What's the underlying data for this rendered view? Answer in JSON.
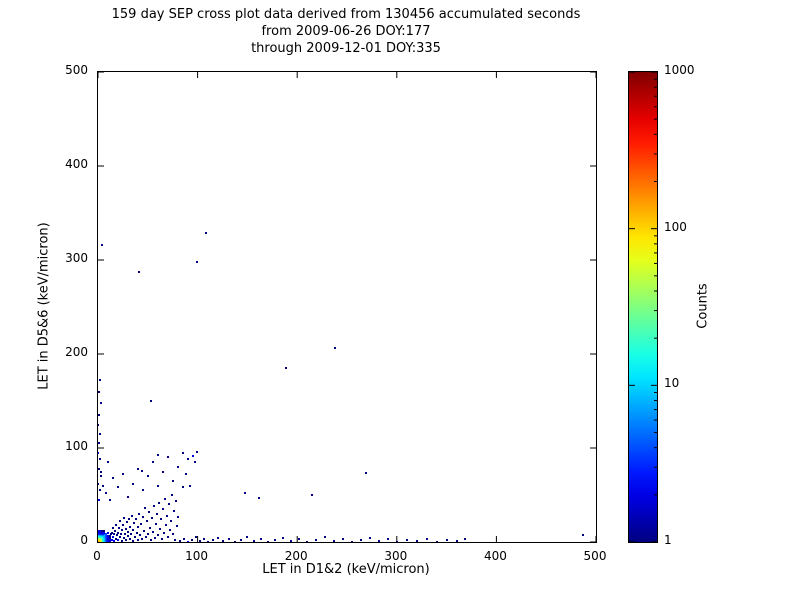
{
  "chart_data": {
    "type": "scatter",
    "title": "159 day SEP cross plot data derived from 130456 accumulated seconds from 2009-06-26 DOY:177 through 2009-12-01 DOY:335",
    "title_lines": [
      "159 day SEP cross plot data derived from 130456 accumulated seconds",
      "from 2009-06-26 DOY:177",
      "through 2009-12-01 DOY:335"
    ],
    "xlabel": "LET in D1&2 (keV/micron)",
    "ylabel": "LET in D5&6 (keV/micron)",
    "xlim": [
      0,
      500
    ],
    "ylim": [
      0,
      500
    ],
    "xticks": [
      0,
      100,
      200,
      300,
      400,
      500
    ],
    "yticks": [
      0,
      100,
      200,
      300,
      400,
      500
    ],
    "grid": false,
    "color_scale": {
      "label": "Counts",
      "type": "log",
      "min": 1,
      "max": 1000,
      "ticks": [
        1,
        10,
        100,
        1000
      ],
      "colormap": "jet"
    },
    "points": [
      [
        0,
        0,
        200
      ],
      [
        1,
        0,
        180
      ],
      [
        0,
        1,
        170
      ],
      [
        1,
        1,
        150
      ],
      [
        2,
        0,
        130
      ],
      [
        0,
        2,
        120
      ],
      [
        2,
        1,
        110
      ],
      [
        1,
        2,
        100
      ],
      [
        2,
        2,
        90
      ],
      [
        3,
        0,
        85
      ],
      [
        0,
        3,
        80
      ],
      [
        3,
        1,
        75
      ],
      [
        1,
        3,
        70
      ],
      [
        3,
        2,
        60
      ],
      [
        2,
        3,
        58
      ],
      [
        3,
        3,
        50
      ],
      [
        4,
        0,
        48
      ],
      [
        0,
        4,
        45
      ],
      [
        4,
        1,
        42
      ],
      [
        1,
        4,
        40
      ],
      [
        4,
        2,
        38
      ],
      [
        2,
        4,
        35
      ],
      [
        4,
        3,
        32
      ],
      [
        3,
        4,
        30
      ],
      [
        4,
        4,
        28
      ],
      [
        5,
        0,
        26
      ],
      [
        0,
        5,
        25
      ],
      [
        5,
        1,
        24
      ],
      [
        1,
        5,
        22
      ],
      [
        5,
        2,
        20
      ],
      [
        2,
        5,
        19
      ],
      [
        5,
        3,
        18
      ],
      [
        3,
        5,
        17
      ],
      [
        5,
        5,
        15
      ],
      [
        6,
        0,
        14
      ],
      [
        0,
        6,
        13
      ],
      [
        6,
        2,
        12
      ],
      [
        2,
        6,
        12
      ],
      [
        6,
        4,
        10
      ],
      [
        4,
        6,
        10
      ],
      [
        6,
        6,
        9
      ],
      [
        7,
        1,
        9
      ],
      [
        1,
        7,
        8
      ],
      [
        7,
        3,
        8
      ],
      [
        3,
        7,
        7
      ],
      [
        7,
        5,
        7
      ],
      [
        5,
        7,
        6
      ],
      [
        8,
        0,
        6
      ],
      [
        0,
        8,
        6
      ],
      [
        8,
        2,
        5
      ],
      [
        2,
        8,
        5
      ],
      [
        8,
        4,
        5
      ],
      [
        4,
        8,
        4
      ],
      [
        8,
        6,
        4
      ],
      [
        6,
        8,
        4
      ],
      [
        8,
        8,
        4
      ],
      [
        9,
        1,
        3
      ],
      [
        1,
        9,
        3
      ],
      [
        9,
        3,
        3
      ],
      [
        3,
        9,
        3
      ],
      [
        9,
        5,
        3
      ],
      [
        5,
        9,
        3
      ],
      [
        10,
        0,
        3
      ],
      [
        0,
        10,
        3
      ],
      [
        10,
        2,
        2
      ],
      [
        2,
        10,
        2
      ],
      [
        10,
        4,
        2
      ],
      [
        4,
        10,
        2
      ],
      [
        10,
        6,
        2
      ],
      [
        6,
        10,
        2
      ],
      [
        10,
        10,
        2
      ],
      [
        11,
        1,
        2
      ],
      [
        1,
        11,
        2
      ],
      [
        11,
        3,
        2
      ],
      [
        3,
        11,
        2
      ],
      [
        12,
        0,
        2
      ],
      [
        0,
        12,
        2
      ],
      [
        12,
        2,
        2
      ],
      [
        2,
        12,
        2
      ],
      [
        12,
        4,
        1
      ],
      [
        4,
        12,
        1
      ],
      [
        12,
        6,
        1
      ],
      [
        6,
        12,
        1
      ],
      [
        13,
        8,
        1
      ],
      [
        14,
        2,
        2
      ],
      [
        14,
        10,
        1
      ],
      [
        15,
        5,
        2
      ],
      [
        15,
        15,
        1
      ],
      [
        16,
        1,
        2
      ],
      [
        16,
        8,
        1
      ],
      [
        17,
        12,
        1
      ],
      [
        18,
        3,
        1
      ],
      [
        18,
        18,
        1
      ],
      [
        19,
        7,
        1
      ],
      [
        20,
        2,
        2
      ],
      [
        20,
        10,
        1
      ],
      [
        21,
        15,
        1
      ],
      [
        22,
        5,
        1
      ],
      [
        22,
        22,
        1
      ],
      [
        23,
        9,
        1
      ],
      [
        24,
        1,
        1
      ],
      [
        24,
        13,
        1
      ],
      [
        25,
        18,
        1
      ],
      [
        26,
        4,
        1
      ],
      [
        26,
        26,
        1
      ],
      [
        27,
        8,
        1
      ],
      [
        28,
        2,
        1
      ],
      [
        28,
        14,
        1
      ],
      [
        29,
        21,
        1
      ],
      [
        30,
        6,
        1
      ],
      [
        30,
        11,
        1
      ],
      [
        31,
        25,
        1
      ],
      [
        32,
        3,
        1
      ],
      [
        32,
        16,
        1
      ],
      [
        33,
        9,
        1
      ],
      [
        34,
        28,
        1
      ],
      [
        35,
        1,
        1
      ],
      [
        35,
        13,
        1
      ],
      [
        36,
        20,
        1
      ],
      [
        37,
        5,
        1
      ],
      [
        38,
        24,
        1
      ],
      [
        39,
        10,
        1
      ],
      [
        40,
        2,
        1
      ],
      [
        40,
        16,
        1
      ],
      [
        41,
        30,
        1
      ],
      [
        42,
        7,
        1
      ],
      [
        43,
        19,
        1
      ],
      [
        44,
        3,
        1
      ],
      [
        45,
        27,
        1
      ],
      [
        46,
        12,
        1
      ],
      [
        47,
        36,
        1
      ],
      [
        48,
        5,
        1
      ],
      [
        49,
        22,
        1
      ],
      [
        50,
        9,
        1
      ],
      [
        51,
        32,
        1
      ],
      [
        52,
        15,
        1
      ],
      [
        53,
        2,
        1
      ],
      [
        54,
        26,
        1
      ],
      [
        55,
        11,
        1
      ],
      [
        56,
        38,
        1
      ],
      [
        57,
        4,
        1
      ],
      [
        58,
        19,
        1
      ],
      [
        59,
        30,
        1
      ],
      [
        60,
        7,
        1
      ],
      [
        61,
        42,
        1
      ],
      [
        62,
        14,
        1
      ],
      [
        63,
        24,
        1
      ],
      [
        64,
        3,
        1
      ],
      [
        65,
        35,
        1
      ],
      [
        66,
        10,
        1
      ],
      [
        67,
        46,
        1
      ],
      [
        68,
        18,
        1
      ],
      [
        69,
        28,
        1
      ],
      [
        70,
        5,
        1
      ],
      [
        71,
        40,
        1
      ],
      [
        72,
        13,
        1
      ],
      [
        73,
        22,
        1
      ],
      [
        74,
        50,
        1
      ],
      [
        75,
        8,
        1
      ],
      [
        76,
        33,
        1
      ],
      [
        77,
        2,
        1
      ],
      [
        78,
        44,
        1
      ],
      [
        79,
        17,
        1
      ],
      [
        80,
        27,
        1
      ],
      [
        12,
        45,
        1
      ],
      [
        8,
        52,
        1
      ],
      [
        5,
        60,
        1
      ],
      [
        15,
        68,
        1
      ],
      [
        3,
        75,
        1
      ],
      [
        10,
        85,
        1
      ],
      [
        20,
        58,
        1
      ],
      [
        25,
        72,
        1
      ],
      [
        30,
        48,
        1
      ],
      [
        35,
        62,
        1
      ],
      [
        40,
        78,
        1
      ],
      [
        45,
        55,
        1
      ],
      [
        50,
        70,
        1
      ],
      [
        55,
        85,
        1
      ],
      [
        60,
        60,
        1
      ],
      [
        65,
        75,
        1
      ],
      [
        70,
        90,
        1
      ],
      [
        75,
        65,
        1
      ],
      [
        80,
        80,
        1
      ],
      [
        85,
        58,
        1
      ],
      [
        88,
        72,
        1
      ],
      [
        90,
        88,
        1
      ],
      [
        92,
        60,
        1
      ],
      [
        95,
        92,
        2
      ],
      [
        97,
        85,
        1
      ],
      [
        99,
        96,
        1
      ],
      [
        85,
        95,
        1
      ],
      [
        60,
        93,
        1
      ],
      [
        82,
        1,
        1
      ],
      [
        86,
        3,
        1
      ],
      [
        90,
        0,
        2
      ],
      [
        94,
        2,
        1
      ],
      [
        98,
        5,
        1
      ],
      [
        102,
        1,
        1
      ],
      [
        106,
        3,
        1
      ],
      [
        110,
        0,
        1
      ],
      [
        115,
        2,
        1
      ],
      [
        120,
        4,
        1
      ],
      [
        126,
        1,
        1
      ],
      [
        132,
        3,
        1
      ],
      [
        138,
        0,
        1
      ],
      [
        144,
        2,
        1
      ],
      [
        150,
        5,
        1
      ],
      [
        157,
        1,
        1
      ],
      [
        164,
        3,
        1
      ],
      [
        171,
        0,
        1
      ],
      [
        178,
        2,
        1
      ],
      [
        186,
        4,
        1
      ],
      [
        194,
        1,
        1
      ],
      [
        202,
        3,
        1
      ],
      [
        210,
        0,
        1
      ],
      [
        219,
        2,
        1
      ],
      [
        228,
        5,
        1
      ],
      [
        237,
        1,
        1
      ],
      [
        246,
        3,
        1
      ],
      [
        255,
        0,
        1
      ],
      [
        264,
        2,
        1
      ],
      [
        273,
        4,
        1
      ],
      [
        282,
        1,
        1
      ],
      [
        291,
        3,
        1
      ],
      [
        300,
        0,
        1
      ],
      [
        310,
        2,
        1
      ],
      [
        320,
        1,
        1
      ],
      [
        330,
        3,
        1
      ],
      [
        340,
        0,
        1
      ],
      [
        350,
        2,
        1
      ],
      [
        360,
        1,
        1
      ],
      [
        368,
        3,
        1
      ],
      [
        487,
        7,
        1
      ],
      [
        1,
        45,
        2
      ],
      [
        2,
        55,
        1
      ],
      [
        0,
        62,
        1
      ],
      [
        3,
        70,
        1
      ],
      [
        1,
        78,
        1
      ],
      [
        2,
        88,
        1
      ],
      [
        0,
        95,
        2
      ],
      [
        1,
        105,
        1
      ],
      [
        2,
        115,
        1
      ],
      [
        0,
        125,
        1
      ],
      [
        1,
        135,
        1
      ],
      [
        3,
        148,
        1
      ],
      [
        1,
        160,
        1
      ],
      [
        2,
        172,
        1
      ],
      [
        4,
        316,
        1
      ],
      [
        108,
        329,
        1
      ],
      [
        41,
        287,
        1
      ],
      [
        99,
        298,
        1
      ],
      [
        238,
        206,
        1
      ],
      [
        189,
        185,
        1
      ],
      [
        53,
        150,
        1
      ],
      [
        269,
        73,
        1
      ],
      [
        148,
        52,
        1
      ],
      [
        162,
        47,
        1
      ],
      [
        215,
        50,
        1
      ],
      [
        44,
        76,
        1
      ]
    ]
  }
}
